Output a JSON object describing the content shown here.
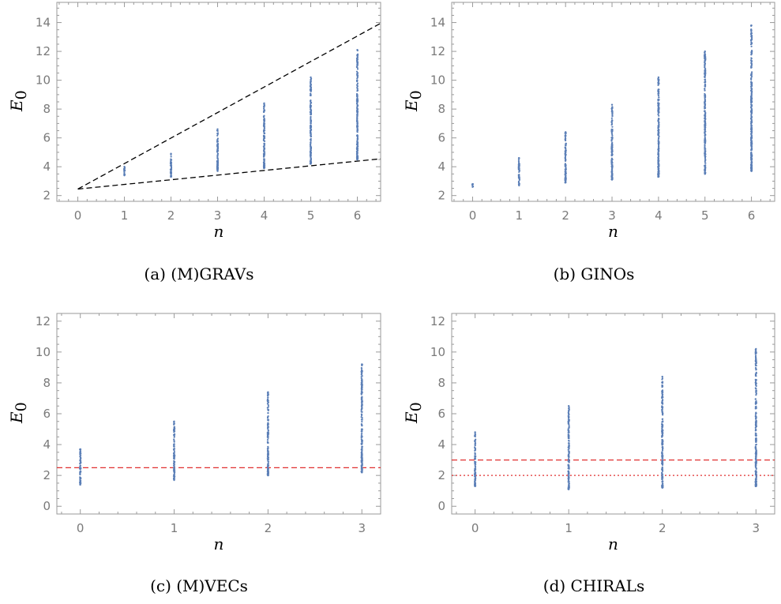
{
  "chart_data": [
    {
      "type": "scatter",
      "caption": "(a) (M)GRAVs",
      "xlabel": "n",
      "ylabel_main": "E",
      "ylabel_sub": "0",
      "xlim": [
        -0.45,
        6.5
      ],
      "ylim": [
        1.6,
        15.4
      ],
      "xticks": [
        0,
        1,
        2,
        3,
        4,
        5,
        6
      ],
      "yticks": [
        2,
        4,
        6,
        8,
        10,
        12,
        14
      ],
      "point_color": "#5b7fb7",
      "columns": [
        {
          "x": 1,
          "ymin": 3.4,
          "ymax": 4.0
        },
        {
          "x": 2,
          "ymin": 3.3,
          "ymax": 4.9
        },
        {
          "x": 3,
          "ymin": 3.7,
          "ymax": 6.6
        },
        {
          "x": 4,
          "ymin": 3.9,
          "ymax": 8.4
        },
        {
          "x": 5,
          "ymin": 4.2,
          "ymax": 10.2
        },
        {
          "x": 6,
          "ymin": 4.5,
          "ymax": 12.1
        }
      ],
      "lines": [
        {
          "style": "dashed",
          "color": "#000000",
          "points": [
            [
              0,
              2.45
            ],
            [
              6.5,
              13.95
            ]
          ]
        },
        {
          "style": "dashed",
          "color": "#000000",
          "points": [
            [
              0,
              2.45
            ],
            [
              6.5,
              4.55
            ]
          ]
        }
      ]
    },
    {
      "type": "scatter",
      "caption": "(b) GINOs",
      "xlabel": "n",
      "ylabel_main": "E",
      "ylabel_sub": "0",
      "xlim": [
        -0.45,
        6.5
      ],
      "ylim": [
        1.6,
        15.4
      ],
      "xticks": [
        0,
        1,
        2,
        3,
        4,
        5,
        6
      ],
      "yticks": [
        2,
        4,
        6,
        8,
        10,
        12,
        14
      ],
      "point_color": "#5b7fb7",
      "columns": [
        {
          "x": 0,
          "ymin": 2.6,
          "ymax": 2.8
        },
        {
          "x": 1,
          "ymin": 2.7,
          "ymax": 4.6
        },
        {
          "x": 2,
          "ymin": 2.9,
          "ymax": 6.4
        },
        {
          "x": 3,
          "ymin": 3.1,
          "ymax": 8.3
        },
        {
          "x": 4,
          "ymin": 3.3,
          "ymax": 10.2
        },
        {
          "x": 5,
          "ymin": 3.5,
          "ymax": 12.0
        },
        {
          "x": 6,
          "ymin": 3.7,
          "ymax": 13.8
        }
      ],
      "lines": []
    },
    {
      "type": "scatter",
      "caption": "(c) (M)VECs",
      "xlabel": "n",
      "ylabel_main": "E",
      "ylabel_sub": "0",
      "xlim": [
        -0.25,
        3.2
      ],
      "ylim": [
        -0.5,
        12.5
      ],
      "xticks": [
        0,
        1,
        2,
        3
      ],
      "yticks": [
        0,
        2,
        4,
        6,
        8,
        10,
        12
      ],
      "point_color": "#5b7fb7",
      "columns": [
        {
          "x": 0,
          "ymin": 1.4,
          "ymax": 3.7
        },
        {
          "x": 1,
          "ymin": 1.7,
          "ymax": 5.5
        },
        {
          "x": 2,
          "ymin": 2.0,
          "ymax": 7.4
        },
        {
          "x": 3,
          "ymin": 2.2,
          "ymax": 9.2
        }
      ],
      "lines": [
        {
          "style": "dashed",
          "color": "#e03030",
          "points": [
            [
              -0.25,
              2.5
            ],
            [
              3.2,
              2.5
            ]
          ]
        }
      ]
    },
    {
      "type": "scatter",
      "caption": "(d) CHIRALs",
      "xlabel": "n",
      "ylabel_main": "E",
      "ylabel_sub": "0",
      "xlim": [
        -0.25,
        3.2
      ],
      "ylim": [
        -0.5,
        12.5
      ],
      "xticks": [
        0,
        1,
        2,
        3
      ],
      "yticks": [
        0,
        2,
        4,
        6,
        8,
        10,
        12
      ],
      "point_color": "#5b7fb7",
      "columns": [
        {
          "x": 0,
          "ymin": 1.3,
          "ymax": 4.8
        },
        {
          "x": 1,
          "ymin": 1.1,
          "ymax": 6.5
        },
        {
          "x": 2,
          "ymin": 1.2,
          "ymax": 8.4
        },
        {
          "x": 3,
          "ymin": 1.3,
          "ymax": 10.2
        }
      ],
      "lines": [
        {
          "style": "dashed",
          "color": "#e03030",
          "points": [
            [
              -0.25,
              3.0
            ],
            [
              3.2,
              3.0
            ]
          ]
        },
        {
          "style": "dotted",
          "color": "#e03030",
          "points": [
            [
              -0.25,
              2.0
            ],
            [
              3.2,
              2.0
            ]
          ]
        }
      ]
    }
  ]
}
